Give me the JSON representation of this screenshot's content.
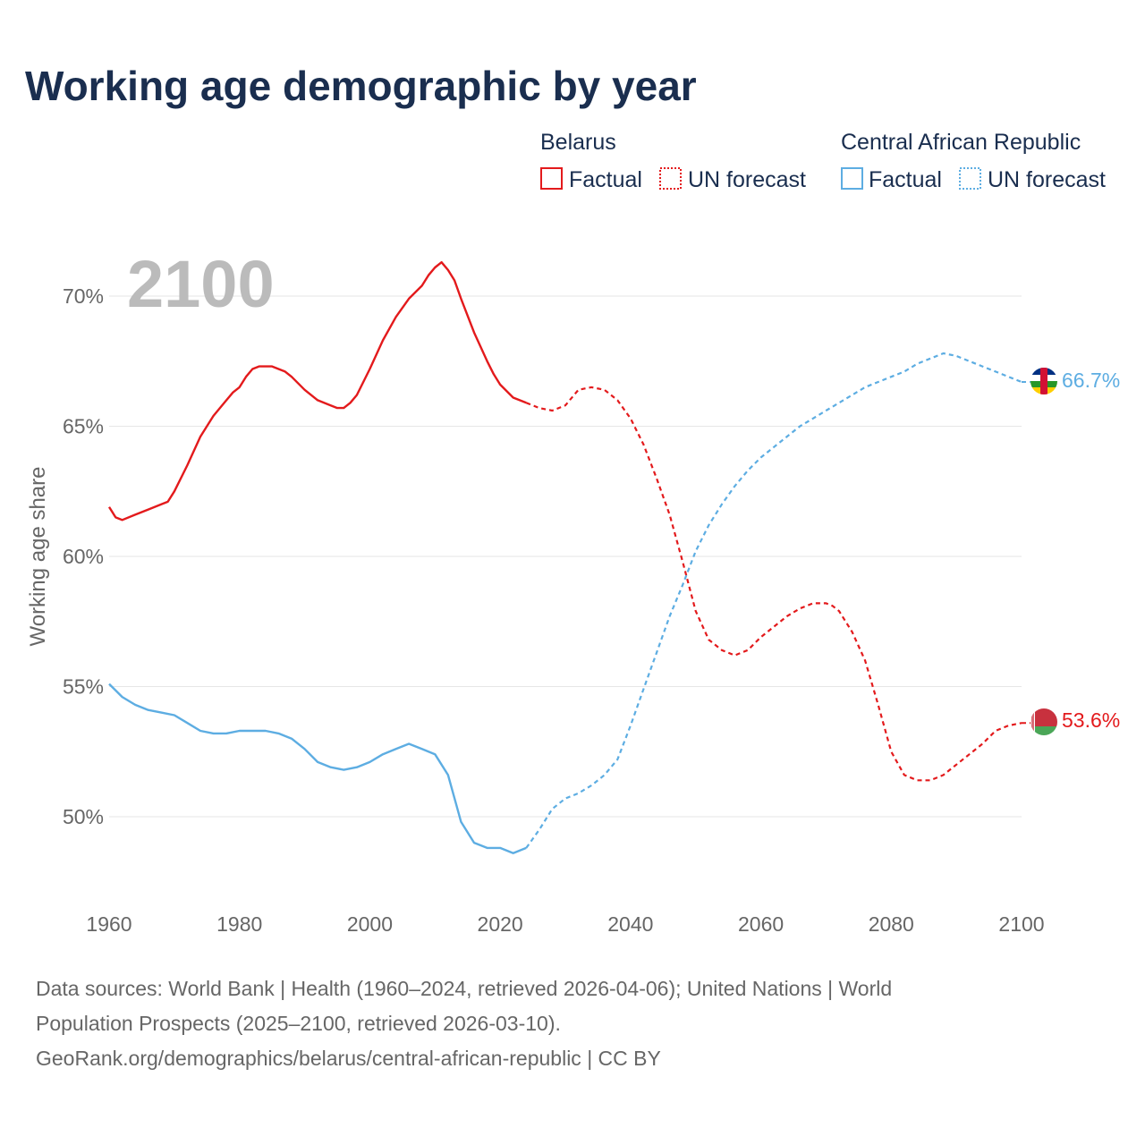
{
  "title": "Working age demographic by year",
  "current_year": "2100",
  "legend": {
    "groups": [
      {
        "country": "Belarus",
        "factual_label": "Factual",
        "forecast_label": "UN forecast",
        "color": "#e31a1c"
      },
      {
        "country": "Central African Republic",
        "factual_label": "Factual",
        "forecast_label": "UN forecast",
        "color": "#5dade2"
      }
    ]
  },
  "colors": {
    "belarus": "#e31a1c",
    "car": "#5dade2",
    "grid": "#e6e6e6",
    "text": "#1a2e4f",
    "muted": "#666666"
  },
  "chart_data": {
    "type": "line",
    "title": "Working age demographic by year",
    "xlabel": "",
    "ylabel": "Working age share",
    "xlim": [
      1960,
      2100
    ],
    "ylim": [
      47,
      72
    ],
    "xticks": [
      1960,
      1980,
      2000,
      2020,
      2040,
      2060,
      2080,
      2100
    ],
    "yticks": [
      50,
      55,
      60,
      65,
      70
    ],
    "xtick_labels": [
      "1960",
      "1980",
      "2000",
      "2020",
      "2040",
      "2060",
      "2080",
      "2100"
    ],
    "ytick_labels": [
      "50%",
      "55%",
      "60%",
      "65%",
      "70%"
    ],
    "forecast_start": 2024,
    "series": [
      {
        "name": "Belarus",
        "key": "belarus",
        "end_label": "53.6%",
        "end_icon": "belarus-flag-icon",
        "x": [
          1960,
          1961,
          1962,
          1964,
          1966,
          1968,
          1969,
          1970,
          1972,
          1974,
          1976,
          1978,
          1979,
          1980,
          1981,
          1982,
          1983,
          1984,
          1985,
          1986,
          1987,
          1988,
          1990,
          1992,
          1994,
          1995,
          1996,
          1997,
          1998,
          2000,
          2002,
          2004,
          2006,
          2008,
          2009,
          2010,
          2011,
          2012,
          2013,
          2014,
          2016,
          2018,
          2019,
          2020,
          2022,
          2024,
          2026,
          2028,
          2030,
          2032,
          2034,
          2036,
          2038,
          2040,
          2042,
          2044,
          2046,
          2048,
          2050,
          2052,
          2054,
          2056,
          2058,
          2060,
          2062,
          2064,
          2066,
          2068,
          2070,
          2071,
          2072,
          2074,
          2076,
          2078,
          2080,
          2082,
          2084,
          2086,
          2088,
          2090,
          2092,
          2094,
          2096,
          2098,
          2100
        ],
        "y": [
          61.9,
          61.5,
          61.4,
          61.6,
          61.8,
          62.0,
          62.1,
          62.5,
          63.5,
          64.6,
          65.4,
          66.0,
          66.3,
          66.5,
          66.9,
          67.2,
          67.3,
          67.3,
          67.3,
          67.2,
          67.1,
          66.9,
          66.4,
          66.0,
          65.8,
          65.7,
          65.7,
          65.9,
          66.2,
          67.2,
          68.3,
          69.2,
          69.9,
          70.4,
          70.8,
          71.1,
          71.3,
          71.0,
          70.6,
          69.9,
          68.6,
          67.5,
          67.0,
          66.6,
          66.1,
          65.9,
          65.7,
          65.6,
          65.8,
          66.4,
          66.5,
          66.4,
          66.0,
          65.3,
          64.3,
          63.0,
          61.6,
          59.8,
          57.9,
          56.8,
          56.4,
          56.2,
          56.4,
          56.9,
          57.3,
          57.7,
          58.0,
          58.2,
          58.2,
          58.1,
          57.9,
          57.1,
          56.0,
          54.3,
          52.5,
          51.6,
          51.4,
          51.4,
          51.6,
          52.0,
          52.4,
          52.8,
          53.3,
          53.5,
          53.6
        ]
      },
      {
        "name": "Central African Republic",
        "key": "car",
        "end_label": "66.7%",
        "end_icon": "central-african-republic-flag-icon",
        "x": [
          1960,
          1962,
          1964,
          1966,
          1968,
          1970,
          1972,
          1974,
          1976,
          1978,
          1980,
          1982,
          1984,
          1986,
          1988,
          1990,
          1992,
          1994,
          1996,
          1998,
          2000,
          2002,
          2004,
          2006,
          2008,
          2010,
          2012,
          2014,
          2016,
          2018,
          2020,
          2022,
          2024,
          2026,
          2028,
          2030,
          2032,
          2034,
          2036,
          2038,
          2040,
          2042,
          2044,
          2046,
          2048,
          2050,
          2052,
          2054,
          2056,
          2058,
          2060,
          2062,
          2064,
          2066,
          2068,
          2070,
          2072,
          2074,
          2076,
          2078,
          2080,
          2082,
          2084,
          2086,
          2088,
          2090,
          2092,
          2094,
          2096,
          2098,
          2100
        ],
        "y": [
          55.1,
          54.6,
          54.3,
          54.1,
          54.0,
          53.9,
          53.6,
          53.3,
          53.2,
          53.2,
          53.3,
          53.3,
          53.3,
          53.2,
          53.0,
          52.6,
          52.1,
          51.9,
          51.8,
          51.9,
          52.1,
          52.4,
          52.6,
          52.8,
          52.6,
          52.4,
          51.6,
          49.8,
          49.0,
          48.8,
          48.8,
          48.6,
          48.8,
          49.5,
          50.3,
          50.7,
          50.9,
          51.2,
          51.6,
          52.2,
          53.5,
          54.9,
          56.3,
          57.7,
          58.9,
          60.2,
          61.2,
          62.0,
          62.7,
          63.3,
          63.8,
          64.2,
          64.6,
          65.0,
          65.3,
          65.6,
          65.9,
          66.2,
          66.5,
          66.7,
          66.9,
          67.1,
          67.4,
          67.6,
          67.8,
          67.7,
          67.5,
          67.3,
          67.1,
          66.9,
          66.7
        ]
      }
    ]
  },
  "source": {
    "line1": "Data sources: World Bank | Health (1960–2024, retrieved 2026-04-06); United Nations | World",
    "line2": "Population Prospects (2025–2100, retrieved 2026-03-10).",
    "line3": "GeoRank.org/demographics/belarus/central-african-republic | CC BY"
  }
}
